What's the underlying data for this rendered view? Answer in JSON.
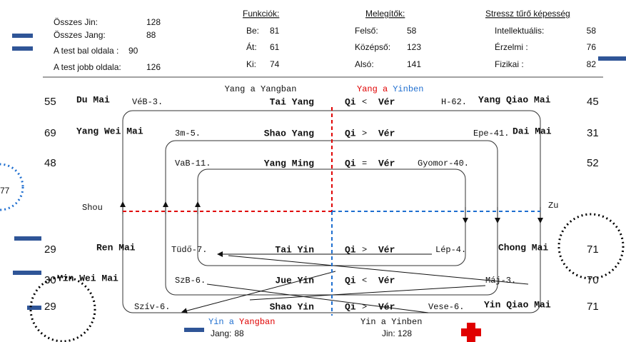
{
  "header": {
    "totals": [
      {
        "label": "Összes Jin:",
        "value": 128
      },
      {
        "label": "Összes Jang:",
        "value": 88
      },
      {
        "label": "A test bal oldala :",
        "value": 90
      },
      {
        "label": "A test jobb oldala:",
        "value": 126
      }
    ],
    "funkciok": {
      "title": "Funkciók:",
      "items": [
        {
          "label": "Be:",
          "value": 81
        },
        {
          "label": "Át:",
          "value": 61
        },
        {
          "label": "Ki:",
          "value": 74
        }
      ]
    },
    "melegitok": {
      "title": "Melegítők:",
      "items": [
        {
          "label": "Felső:",
          "value": 58
        },
        {
          "label": "Középső:",
          "value": 123
        },
        {
          "label": "Alsó:",
          "value": 141
        }
      ]
    },
    "stressz": {
      "title": "Stressz tűrő képesség",
      "items": [
        {
          "label": "Intellektuális:",
          "value": 58
        },
        {
          "label": "Érzelmi :",
          "value": 76
        },
        {
          "label": "Fizikai :",
          "value": 82
        }
      ]
    }
  },
  "diagram": {
    "top_left": "Yang a Yangban",
    "top_right": [
      "Yang a",
      "Yinben"
    ],
    "shou": "Shou",
    "zu": "Zu",
    "side_circle": "77",
    "rows": [
      {
        "left_value": 55,
        "left_meridian": "Du Mai",
        "left_point": "VéB-3.",
        "channel": "Tai Yang",
        "qi": "Qi",
        "relation": "<",
        "ver": "Vér",
        "right_point": "H-62.",
        "right_meridian": "Yang Qiao Mai",
        "right_value": 45,
        "qi_color": "#000000",
        "ver_color": "#1f6fd0"
      },
      {
        "left_value": 69,
        "left_meridian": "Yang Wei Mai",
        "left_point": "3m-5.",
        "channel": "Shao Yang",
        "qi": "Qi",
        "relation": ">",
        "ver": "Vér",
        "right_point": "Epe-41.",
        "right_meridian": "Dai Mai",
        "right_value": 31,
        "qi_color": "#e00000",
        "ver_color": "#000000"
      },
      {
        "left_value": 48,
        "left_point": "VaB-11.",
        "channel": "Yang Ming",
        "qi": "Qi",
        "relation": "=",
        "ver": "Vér",
        "right_point": "Gyomor-40.",
        "right_value": 52,
        "qi_color": "#e00000",
        "ver_color": "#1f6fd0"
      },
      {
        "left_value": 29,
        "left_meridian": "Ren Mai",
        "left_point": "Tüdő-7.",
        "channel": "Tai Yin",
        "qi": "Qi",
        "relation": ">",
        "ver": "Vér",
        "right_point": "Lép-4.",
        "right_meridian": "Chong Mai",
        "right_value": 71,
        "qi_color": "#e00000",
        "ver_color": "#000000"
      },
      {
        "left_value": 30,
        "left_meridian": "Yin Wei Mai",
        "left_point": "SzB-6.",
        "channel": "Jue Yin",
        "qi": "Qi",
        "relation": "<",
        "ver": "Vér",
        "right_point": "Máj-3.",
        "right_value": 70,
        "qi_color": "#000000",
        "ver_color": "#1f6fd0"
      },
      {
        "left_value": 29,
        "left_point": "Szív-6.",
        "channel": "Shao Yin",
        "qi": "Qi",
        "relation": ">",
        "ver": "Vér",
        "right_point": "Vese-6.",
        "right_meridian": "Yin Qiao Mai",
        "right_value": 71,
        "qi_color": "#e00000",
        "ver_color": "#000000"
      }
    ],
    "bottom_left": [
      "Yin a",
      "Yangban"
    ],
    "bottom_right": "Yin a Yinben",
    "jang": {
      "label": "Jang:",
      "value": 88
    },
    "jin": {
      "label": "Jin: ",
      "value": 128
    }
  }
}
